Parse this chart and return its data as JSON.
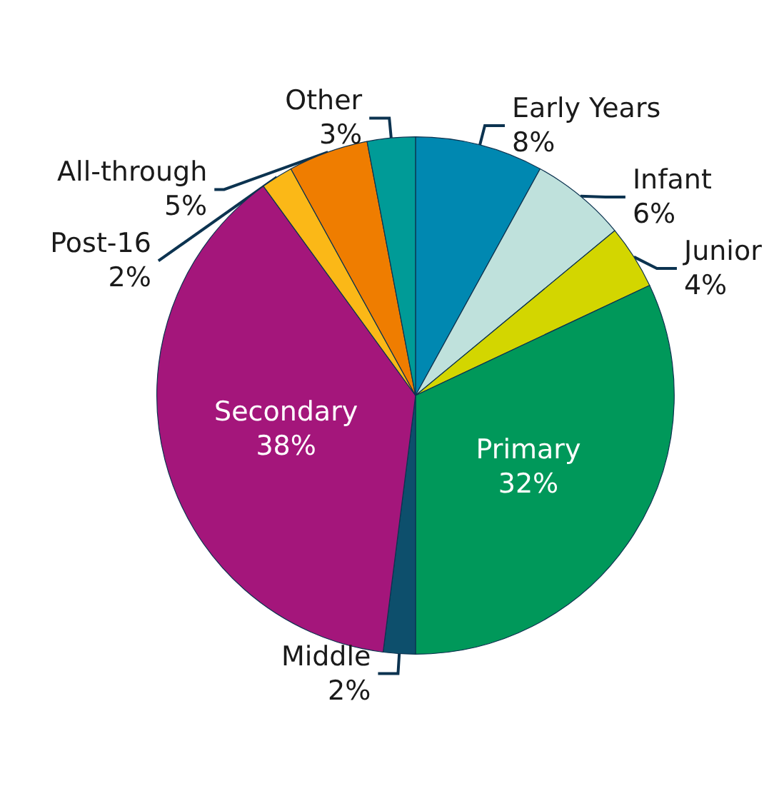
{
  "chart_data": {
    "type": "pie",
    "categories": [
      "Early Years",
      "Infant",
      "Junior",
      "Primary",
      "Middle",
      "Secondary",
      "Post-16",
      "All-through",
      "Other"
    ],
    "values": [
      8,
      6,
      4,
      32,
      2,
      38,
      2,
      5,
      3
    ],
    "value_labels": [
      "8%",
      "6%",
      "4%",
      "32%",
      "2%",
      "38%",
      "2%",
      "5%",
      "3%"
    ],
    "colors": [
      "#0088b1",
      "#bfe1dc",
      "#d3d600",
      "#00985a",
      "#0d4f6c",
      "#a4167b",
      "#fbb817",
      "#ef7d00",
      "#009b97"
    ]
  }
}
